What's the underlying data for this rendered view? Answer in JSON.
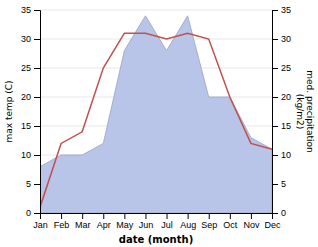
{
  "chart_data": {
    "type": "line",
    "x_label": "date (month)",
    "y_label": "max temp (C)",
    "y2_label": "med. precipitation\n(kg/m2)",
    "categories": [
      "Jan",
      "Feb",
      "Mar",
      "Apr",
      "May",
      "Jun",
      "Jul",
      "Aug",
      "Sep",
      "Oct",
      "Nov",
      "Dec"
    ],
    "series": [
      {
        "type": "area",
        "axis": "y2",
        "color": "#b8c4e8",
        "values": [
          8,
          10,
          10,
          12,
          28,
          34,
          28,
          34,
          20,
          20,
          13,
          11
        ]
      },
      {
        "type": "line",
        "color": "#c0504d",
        "values": [
          1,
          12,
          14,
          25,
          31,
          31,
          30,
          31,
          30,
          20,
          12,
          11
        ]
      }
    ],
    "ylim": [
      0,
      35
    ],
    "yticks": [
      0,
      5,
      10,
      15,
      20,
      25,
      30,
      35
    ],
    "y2lim": [
      0,
      35
    ],
    "y2ticks": [
      0,
      5,
      10,
      15,
      20,
      25,
      30,
      35
    ],
    "grid": true
  }
}
